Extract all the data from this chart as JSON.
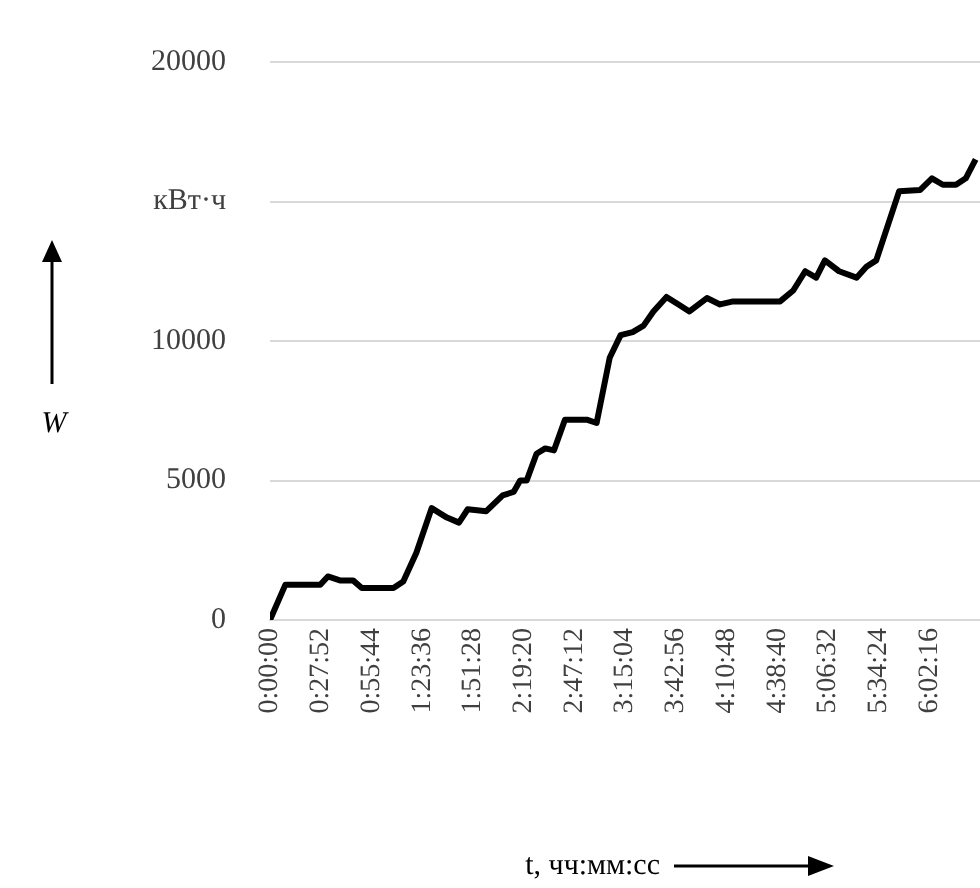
{
  "chart_data": {
    "type": "line",
    "xlabel": "t, чч:мм:сс",
    "ylabel": "W",
    "color": "#000000",
    "grid": "y",
    "x": [
      0,
      0.14,
      0.46,
      0.53,
      0.64,
      0.76,
      0.84,
      1.13,
      1.22,
      1.34,
      1.48,
      1.62,
      1.73,
      1.81,
      1.98,
      2.13,
      2.23,
      2.29,
      2.35,
      2.44,
      2.52,
      2.6,
      2.7,
      2.9,
      2.99,
      3.11,
      3.21,
      3.32,
      3.42,
      3.51,
      3.63,
      3.74,
      3.84,
      4.0,
      4.12,
      4.24,
      4.67,
      4.79,
      4.9,
      5.0,
      5.08,
      5.21,
      5.37,
      5.46,
      5.55,
      5.76,
      5.95,
      6.06,
      6.16,
      6.28,
      6.37,
      6.46
    ],
    "values": [
      0,
      1260,
      1260,
      1560,
      1420,
      1420,
      1150,
      1150,
      1380,
      2410,
      4010,
      3670,
      3490,
      3970,
      3900,
      4470,
      4590,
      5000,
      5000,
      5960,
      6150,
      6080,
      7180,
      7180,
      7060,
      9400,
      10210,
      10320,
      10550,
      11060,
      11580,
      11310,
      11060,
      11540,
      11310,
      11420,
      11420,
      11810,
      12500,
      12270,
      12890,
      12500,
      12270,
      12660,
      12890,
      15370,
      15410,
      15830,
      15600,
      15600,
      15830,
      16510
    ],
    "xlim": [
      0,
      6.5
    ],
    "ylim": [
      0,
      20000
    ],
    "xticks": [
      {
        "value": 0,
        "label": "0:00:00"
      },
      {
        "value": 0.46444,
        "label": "0:27:52"
      },
      {
        "value": 0.92889,
        "label": "0:55:44"
      },
      {
        "value": 1.39333,
        "label": "1:23:36"
      },
      {
        "value": 1.85778,
        "label": "1:51:28"
      },
      {
        "value": 2.32222,
        "label": "2:19:20"
      },
      {
        "value": 2.78667,
        "label": "2:47:12"
      },
      {
        "value": 3.25111,
        "label": "3:15:04"
      },
      {
        "value": 3.71556,
        "label": "3:42:56"
      },
      {
        "value": 4.18,
        "label": "4:10:48"
      },
      {
        "value": 4.64444,
        "label": "4:38:40"
      },
      {
        "value": 5.10889,
        "label": "5:06:32"
      },
      {
        "value": 5.57333,
        "label": "5:34:24"
      },
      {
        "value": 6.03778,
        "label": "6:02:16"
      }
    ],
    "yticks": [
      0,
      5000,
      10000,
      {
        "value": 15000,
        "label": "кВт·ч"
      },
      20000
    ]
  }
}
